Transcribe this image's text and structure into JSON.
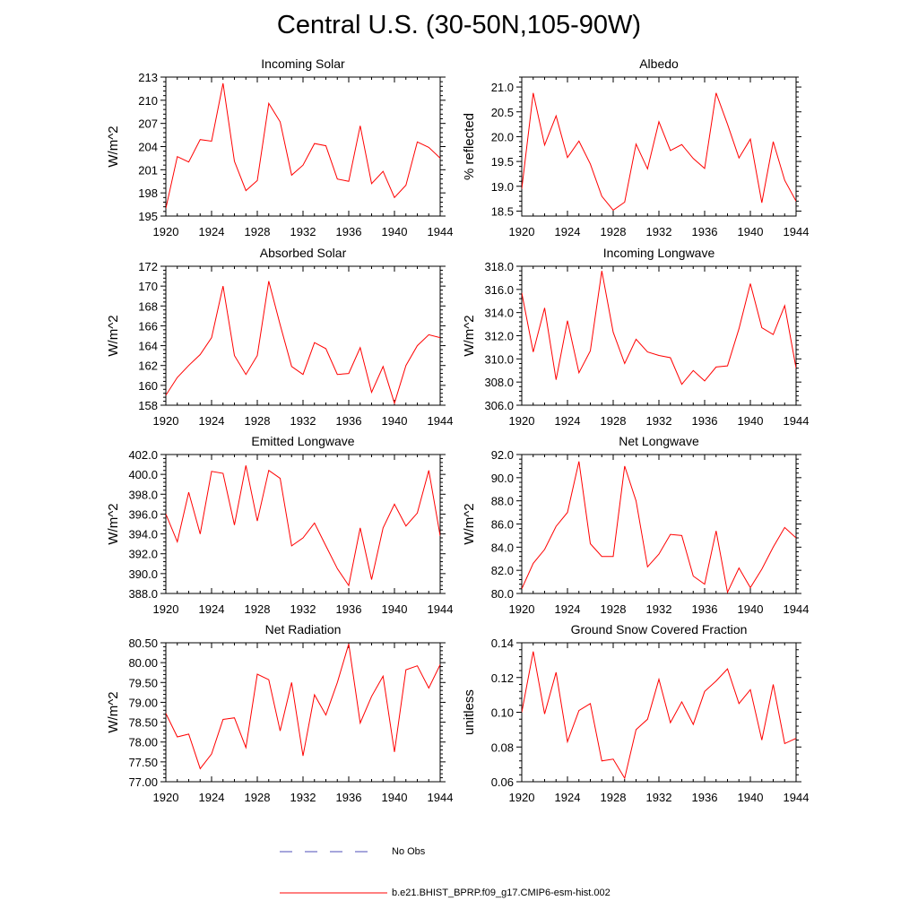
{
  "figure": {
    "title": "Central U.S. (30-50N,105-90W)",
    "line_color": "#ff0000",
    "obs_color": "#4c4cb8"
  },
  "legend": {
    "items": [
      {
        "label": "No Obs",
        "style": "dashed",
        "color": "#4c4cb8"
      },
      {
        "label": "b.e21.BHIST_BPRP.f09_g17.CMIP6-esm-hist.002",
        "style": "solid",
        "color": "#ff0000"
      }
    ]
  },
  "chart_data": [
    {
      "type": "line",
      "title": "Incoming Solar",
      "ylabel": "W/m^2",
      "xlim": [
        1920,
        1944
      ],
      "ylim": [
        195,
        213
      ],
      "xticks": [
        1920,
        1924,
        1928,
        1932,
        1936,
        1940,
        1944
      ],
      "yticks": [
        195,
        198,
        201,
        204,
        207,
        210,
        213
      ],
      "ytick_labels": [
        "195",
        "198",
        "201",
        "204",
        "207",
        "210",
        "213"
      ],
      "x": [
        1920,
        1921,
        1922,
        1923,
        1924,
        1925,
        1926,
        1927,
        1928,
        1929,
        1930,
        1931,
        1932,
        1933,
        1934,
        1935,
        1936,
        1937,
        1938,
        1939,
        1940,
        1941,
        1942,
        1943,
        1944
      ],
      "values": [
        196.0,
        202.7,
        202.0,
        204.9,
        204.7,
        212.2,
        202.1,
        198.3,
        199.6,
        209.6,
        207.2,
        200.3,
        201.6,
        204.4,
        204.1,
        199.8,
        199.5,
        206.7,
        199.2,
        200.8,
        197.4,
        199.0,
        204.6,
        203.9,
        202.5
      ]
    },
    {
      "type": "line",
      "title": "Albedo",
      "ylabel": "% reflected",
      "xlim": [
        1920,
        1944
      ],
      "ylim": [
        18.4,
        21.2
      ],
      "xticks": [
        1920,
        1924,
        1928,
        1932,
        1936,
        1940,
        1944
      ],
      "yticks": [
        18.5,
        19.0,
        19.5,
        20.0,
        20.5,
        21.0
      ],
      "ytick_labels": [
        "18.5",
        "19.0",
        "19.5",
        "20.0",
        "20.5",
        "21.0"
      ],
      "x": [
        1920,
        1921,
        1922,
        1923,
        1924,
        1925,
        1926,
        1927,
        1928,
        1929,
        1930,
        1931,
        1932,
        1933,
        1934,
        1935,
        1936,
        1937,
        1938,
        1939,
        1940,
        1941,
        1942,
        1943,
        1944
      ],
      "values": [
        18.95,
        20.88,
        19.83,
        20.42,
        19.58,
        19.91,
        19.45,
        18.8,
        18.52,
        18.68,
        19.85,
        19.35,
        20.3,
        19.72,
        19.84,
        19.56,
        19.36,
        20.88,
        20.25,
        19.57,
        19.95,
        18.67,
        19.9,
        19.12,
        18.7
      ]
    },
    {
      "type": "line",
      "title": "Absorbed Solar",
      "ylabel": "W/m^2",
      "xlim": [
        1920,
        1944
      ],
      "ylim": [
        158,
        172
      ],
      "xticks": [
        1920,
        1924,
        1928,
        1932,
        1936,
        1940,
        1944
      ],
      "yticks": [
        158,
        160,
        162,
        164,
        166,
        168,
        170,
        172
      ],
      "ytick_labels": [
        "158",
        "160",
        "162",
        "164",
        "166",
        "168",
        "170",
        "172"
      ],
      "x": [
        1920,
        1921,
        1922,
        1923,
        1924,
        1925,
        1926,
        1927,
        1928,
        1929,
        1930,
        1931,
        1932,
        1933,
        1934,
        1935,
        1936,
        1937,
        1938,
        1939,
        1940,
        1941,
        1942,
        1943,
        1944
      ],
      "values": [
        159.0,
        160.8,
        162.0,
        163.1,
        164.8,
        170.0,
        163.0,
        161.1,
        163.0,
        170.5,
        166.1,
        161.9,
        161.1,
        164.3,
        163.7,
        161.1,
        161.2,
        163.8,
        159.3,
        161.9,
        158.2,
        162.0,
        164.0,
        165.1,
        164.8
      ]
    },
    {
      "type": "line",
      "title": "Incoming Longwave",
      "ylabel": "W/m^2",
      "xlim": [
        1920,
        1944
      ],
      "ylim": [
        306,
        318
      ],
      "xticks": [
        1920,
        1924,
        1928,
        1932,
        1936,
        1940,
        1944
      ],
      "yticks": [
        306,
        308,
        310,
        312,
        314,
        316,
        318
      ],
      "ytick_labels": [
        "306.0",
        "308.0",
        "310.0",
        "312.0",
        "314.0",
        "316.0",
        "318.0"
      ],
      "x": [
        1920,
        1921,
        1922,
        1923,
        1924,
        1925,
        1926,
        1927,
        1928,
        1929,
        1930,
        1931,
        1932,
        1933,
        1934,
        1935,
        1936,
        1937,
        1938,
        1939,
        1940,
        1941,
        1942,
        1943,
        1944
      ],
      "values": [
        315.7,
        310.6,
        314.4,
        308.2,
        313.3,
        308.8,
        310.7,
        317.6,
        312.3,
        309.6,
        311.7,
        310.6,
        310.3,
        310.1,
        307.8,
        309.0,
        308.1,
        309.3,
        309.4,
        312.6,
        316.5,
        312.7,
        312.1,
        314.6,
        309.2
      ]
    },
    {
      "type": "line",
      "title": "Emitted Longwave",
      "ylabel": "W/m^2",
      "xlim": [
        1920,
        1944
      ],
      "ylim": [
        388,
        402
      ],
      "xticks": [
        1920,
        1924,
        1928,
        1932,
        1936,
        1940,
        1944
      ],
      "yticks": [
        388,
        390,
        392,
        394,
        396,
        398,
        400,
        402
      ],
      "ytick_labels": [
        "388.0",
        "390.0",
        "392.0",
        "394.0",
        "396.0",
        "398.0",
        "400.0",
        "402.0"
      ],
      "x": [
        1920,
        1921,
        1922,
        1923,
        1924,
        1925,
        1926,
        1927,
        1928,
        1929,
        1930,
        1931,
        1932,
        1933,
        1934,
        1935,
        1936,
        1937,
        1938,
        1939,
        1940,
        1941,
        1942,
        1943,
        1944
      ],
      "values": [
        396.0,
        393.2,
        398.2,
        394.0,
        400.3,
        400.1,
        394.9,
        400.9,
        395.3,
        400.4,
        399.6,
        392.8,
        393.6,
        395.1,
        392.8,
        390.5,
        388.8,
        394.6,
        389.4,
        394.6,
        397.0,
        394.8,
        396.1,
        400.4,
        393.8
      ]
    },
    {
      "type": "line",
      "title": "Net Longwave",
      "ylabel": "W/m^2",
      "xlim": [
        1920,
        1944
      ],
      "ylim": [
        80,
        92
      ],
      "xticks": [
        1920,
        1924,
        1928,
        1932,
        1936,
        1940,
        1944
      ],
      "yticks": [
        80,
        82,
        84,
        86,
        88,
        90,
        92
      ],
      "ytick_labels": [
        "80.0",
        "82.0",
        "84.0",
        "86.0",
        "88.0",
        "90.0",
        "92.0"
      ],
      "x": [
        1920,
        1921,
        1922,
        1923,
        1924,
        1925,
        1926,
        1927,
        1928,
        1929,
        1930,
        1931,
        1932,
        1933,
        1934,
        1935,
        1936,
        1937,
        1938,
        1939,
        1940,
        1941,
        1942,
        1943,
        1944
      ],
      "values": [
        80.4,
        82.6,
        83.8,
        85.8,
        87.0,
        91.4,
        84.3,
        83.2,
        83.2,
        91.0,
        88.0,
        82.3,
        83.4,
        85.1,
        85.0,
        81.5,
        80.8,
        85.4,
        80.1,
        82.2,
        80.5,
        82.1,
        84.0,
        85.7,
        84.8
      ]
    },
    {
      "type": "line",
      "title": "Net Radiation",
      "ylabel": "W/m^2",
      "xlim": [
        1920,
        1944
      ],
      "ylim": [
        77.0,
        80.5
      ],
      "xticks": [
        1920,
        1924,
        1928,
        1932,
        1936,
        1940,
        1944
      ],
      "yticks": [
        77.0,
        77.5,
        78.0,
        78.5,
        79.0,
        79.5,
        80.0,
        80.5
      ],
      "ytick_labels": [
        "77.00",
        "77.50",
        "78.00",
        "78.50",
        "79.00",
        "79.50",
        "80.00",
        "80.50"
      ],
      "x": [
        1920,
        1921,
        1922,
        1923,
        1924,
        1925,
        1926,
        1927,
        1928,
        1929,
        1930,
        1931,
        1932,
        1933,
        1934,
        1935,
        1936,
        1937,
        1938,
        1939,
        1940,
        1941,
        1942,
        1943,
        1944
      ],
      "values": [
        78.72,
        78.13,
        78.2,
        77.33,
        77.7,
        78.57,
        78.61,
        77.86,
        79.71,
        79.57,
        78.28,
        79.5,
        77.65,
        79.19,
        78.68,
        79.5,
        80.47,
        78.48,
        79.15,
        79.66,
        77.75,
        79.82,
        79.92,
        79.36,
        79.95
      ]
    },
    {
      "type": "line",
      "title": "Ground Snow Covered Fraction",
      "ylabel": "unitless",
      "xlim": [
        1920,
        1944
      ],
      "ylim": [
        0.06,
        0.14
      ],
      "xticks": [
        1920,
        1924,
        1928,
        1932,
        1936,
        1940,
        1944
      ],
      "yticks": [
        0.06,
        0.08,
        0.1,
        0.12,
        0.14
      ],
      "ytick_labels": [
        "0.06",
        "0.08",
        "0.10",
        "0.12",
        "0.14"
      ],
      "x": [
        1920,
        1921,
        1922,
        1923,
        1924,
        1925,
        1926,
        1927,
        1928,
        1929,
        1930,
        1931,
        1932,
        1933,
        1934,
        1935,
        1936,
        1937,
        1938,
        1939,
        1940,
        1941,
        1942,
        1943,
        1944
      ],
      "values": [
        0.1,
        0.135,
        0.099,
        0.123,
        0.083,
        0.101,
        0.105,
        0.072,
        0.073,
        0.062,
        0.09,
        0.096,
        0.119,
        0.094,
        0.106,
        0.093,
        0.112,
        0.118,
        0.125,
        0.105,
        0.113,
        0.084,
        0.116,
        0.082,
        0.085
      ]
    }
  ]
}
